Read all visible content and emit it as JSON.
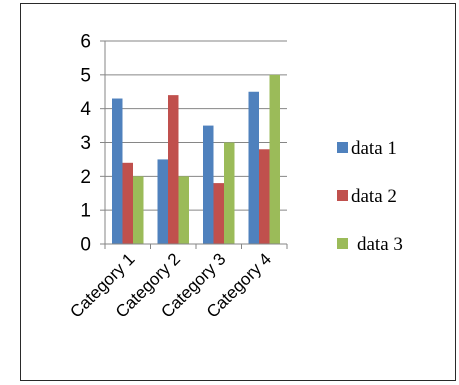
{
  "chart_data": {
    "type": "bar",
    "title": "",
    "xlabel": "",
    "ylabel": "",
    "categories": [
      "Category 1",
      "Category 2",
      "Category 3",
      "Category 4"
    ],
    "series": [
      {
        "name": "data 1",
        "values": [
          4.3,
          2.5,
          3.5,
          4.5
        ],
        "color": "#4F81BD"
      },
      {
        "name": "data 2",
        "values": [
          2.4,
          4.4,
          1.8,
          2.8
        ],
        "color": "#C0504D"
      },
      {
        "name": "data 3",
        "values": [
          2.0,
          2.0,
          3.0,
          5.0
        ],
        "color": "#9BBB59"
      }
    ],
    "ylim": [
      0,
      6
    ],
    "yticks": [
      "0",
      "1",
      "2",
      "3",
      "4",
      "5",
      "6"
    ],
    "grid": true,
    "legend": "right",
    "gridline_color": "#868686",
    "axis_color": "#868686"
  }
}
